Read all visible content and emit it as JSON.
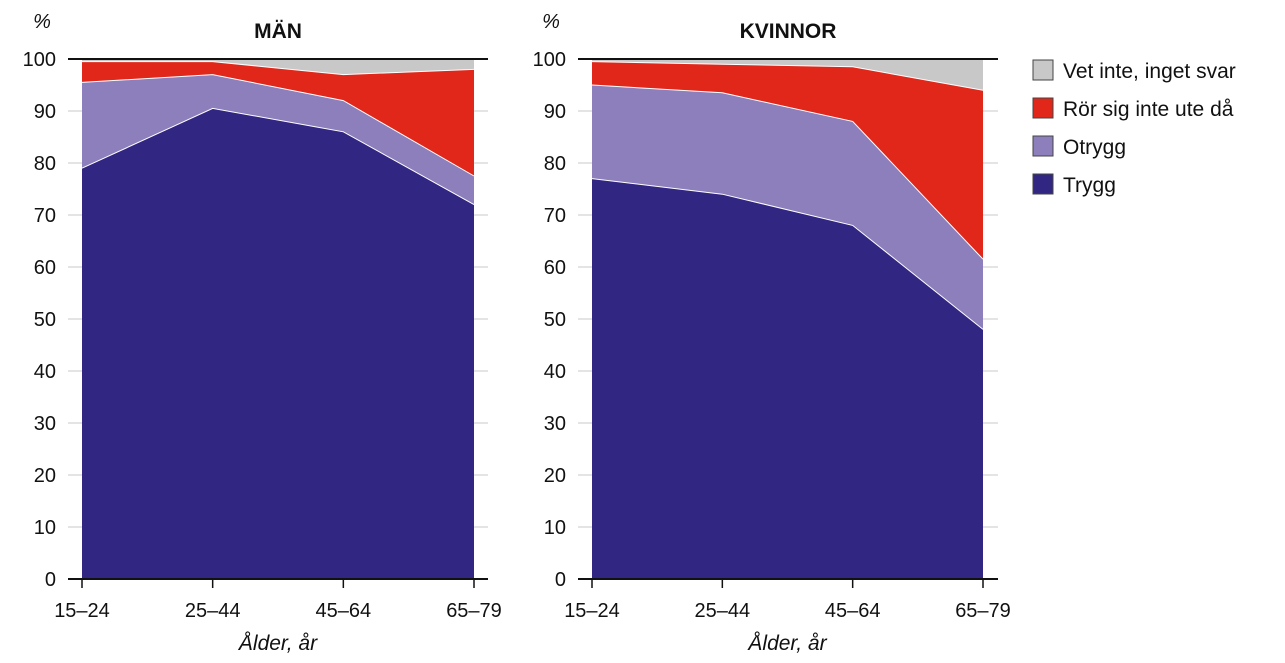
{
  "chart_data": [
    {
      "type": "area",
      "stacked": true,
      "title": "MÄN",
      "ylabel": "%",
      "xlabel": "Ålder, år",
      "categories": [
        "15–24",
        "25–44",
        "45–64",
        "65–79"
      ],
      "ylim": [
        0,
        100
      ],
      "yticks": [
        "0",
        "10",
        "20",
        "30",
        "40",
        "50",
        "60",
        "70",
        "80",
        "90",
        "100"
      ],
      "series": [
        {
          "name": "Trygg",
          "values": [
            79,
            90.5,
            86,
            72
          ],
          "color": "#312783"
        },
        {
          "name": "Otrygg",
          "values": [
            16.5,
            6.5,
            6,
            5.5
          ],
          "color": "#8d7fbb"
        },
        {
          "name": "Rör sig inte ute då",
          "values": [
            4,
            2.5,
            5,
            20.5
          ],
          "color": "#e0271a"
        },
        {
          "name": "Vet inte, inget svar",
          "values": [
            0.5,
            0.5,
            3,
            2
          ],
          "color": "#c8c8c8"
        }
      ]
    },
    {
      "type": "area",
      "stacked": true,
      "title": "KVINNOR",
      "ylabel": "%",
      "xlabel": "Ålder, år",
      "categories": [
        "15–24",
        "25–44",
        "45–64",
        "65–79"
      ],
      "ylim": [
        0,
        100
      ],
      "yticks": [
        "0",
        "10",
        "20",
        "30",
        "40",
        "50",
        "60",
        "70",
        "80",
        "90",
        "100"
      ],
      "series": [
        {
          "name": "Trygg",
          "values": [
            77,
            74,
            68,
            48
          ],
          "color": "#312783"
        },
        {
          "name": "Otrygg",
          "values": [
            18,
            19.5,
            20,
            13.5
          ],
          "color": "#8d7fbb"
        },
        {
          "name": "Rör sig inte ute då",
          "values": [
            4.5,
            5.5,
            10.5,
            32.5
          ],
          "color": "#e0271a"
        },
        {
          "name": "Vet inte, inget svar",
          "values": [
            0.5,
            1,
            1.5,
            6
          ],
          "color": "#c8c8c8"
        }
      ]
    }
  ],
  "legend": {
    "placement": "right",
    "items": [
      {
        "label": "Vet inte, inget svar",
        "color": "#c8c8c8"
      },
      {
        "label": "Rör sig inte ute då",
        "color": "#e0271a"
      },
      {
        "label": "Otrygg",
        "color": "#8d7fbb"
      },
      {
        "label": "Trygg",
        "color": "#312783"
      }
    ]
  }
}
